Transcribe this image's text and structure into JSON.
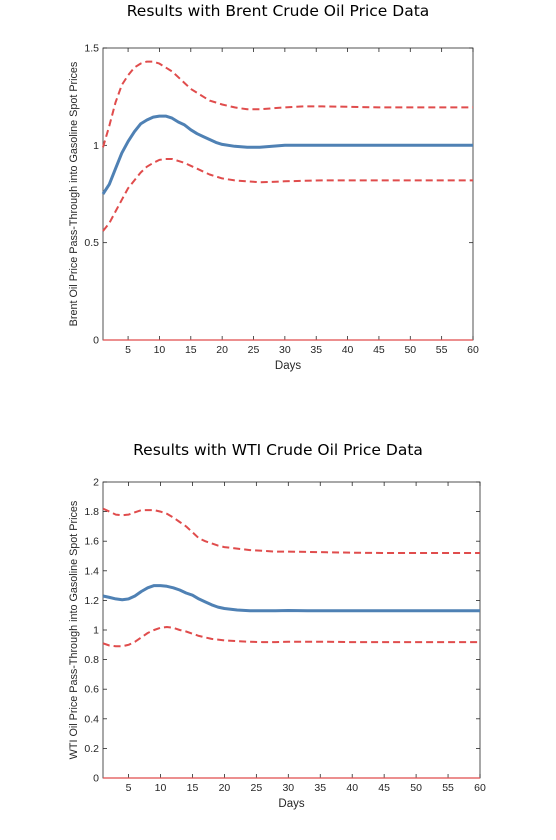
{
  "chart_data": [
    {
      "type": "line",
      "title": "Results with Brent Crude Oil Price Data",
      "xlabel": "Days",
      "ylabel": "Brent Oil Price Pass-Through into Gasoline Spot Prices",
      "xlim": [
        1,
        60
      ],
      "ylim": [
        0,
        1.5
      ],
      "x_ticks": [
        5,
        10,
        15,
        20,
        25,
        30,
        35,
        40,
        45,
        50,
        55,
        60
      ],
      "y_ticks": [
        0,
        0.5,
        1,
        1.5
      ],
      "y_tick_labels": [
        "0",
        "0.5",
        "1",
        "1.5"
      ],
      "grid": false,
      "colors": {
        "estimate": "#4f81b4",
        "bands": "#e04c4c"
      },
      "series": [
        {
          "role": "estimate",
          "style": "solid",
          "x": [
            1,
            2,
            3,
            4,
            5,
            6,
            7,
            8,
            9,
            10,
            11,
            12,
            13,
            14,
            15,
            16,
            17,
            18,
            19,
            20,
            22,
            24,
            26,
            28,
            30,
            33,
            36,
            40,
            45,
            50,
            55,
            60
          ],
          "y": [
            0.75,
            0.8,
            0.88,
            0.96,
            1.02,
            1.07,
            1.11,
            1.13,
            1.145,
            1.15,
            1.15,
            1.14,
            1.12,
            1.105,
            1.08,
            1.06,
            1.045,
            1.03,
            1.015,
            1.005,
            0.995,
            0.99,
            0.99,
            0.995,
            1.0,
            1.0,
            1.0,
            1.0,
            1.0,
            1.0,
            1.0,
            1.0
          ]
        },
        {
          "role": "upper-band",
          "style": "dashed",
          "x": [
            1,
            2,
            3,
            4,
            5,
            6,
            7,
            8,
            9,
            10,
            11,
            12,
            13,
            14,
            15,
            16,
            17,
            18,
            19,
            20,
            22,
            24,
            26,
            28,
            30,
            33,
            36,
            40,
            45,
            50,
            55,
            60
          ],
          "y": [
            0.99,
            1.1,
            1.22,
            1.31,
            1.36,
            1.4,
            1.42,
            1.43,
            1.43,
            1.42,
            1.4,
            1.38,
            1.35,
            1.32,
            1.29,
            1.27,
            1.25,
            1.23,
            1.22,
            1.21,
            1.195,
            1.185,
            1.185,
            1.19,
            1.195,
            1.2,
            1.2,
            1.198,
            1.195,
            1.195,
            1.195,
            1.195
          ]
        },
        {
          "role": "lower-band",
          "style": "dashed",
          "x": [
            1,
            2,
            3,
            4,
            5,
            6,
            7,
            8,
            9,
            10,
            11,
            12,
            13,
            14,
            15,
            16,
            17,
            18,
            19,
            20,
            22,
            24,
            26,
            28,
            30,
            33,
            36,
            40,
            45,
            50,
            55,
            60
          ],
          "y": [
            0.56,
            0.6,
            0.66,
            0.72,
            0.78,
            0.82,
            0.86,
            0.89,
            0.91,
            0.925,
            0.93,
            0.93,
            0.92,
            0.91,
            0.895,
            0.88,
            0.865,
            0.85,
            0.84,
            0.83,
            0.82,
            0.815,
            0.81,
            0.812,
            0.815,
            0.818,
            0.82,
            0.82,
            0.82,
            0.82,
            0.82,
            0.82
          ]
        }
      ]
    },
    {
      "type": "line",
      "title": "Results with WTI Crude Oil Price Data",
      "xlabel": "Days",
      "ylabel": "WTI Oil Price Pass-Through into Gasoline Spot Prices",
      "xlim": [
        1,
        60
      ],
      "ylim": [
        0,
        2
      ],
      "x_ticks": [
        5,
        10,
        15,
        20,
        25,
        30,
        35,
        40,
        45,
        50,
        55,
        60
      ],
      "y_ticks": [
        0,
        0.2,
        0.4,
        0.6,
        0.8,
        1,
        1.2,
        1.4,
        1.6,
        1.8,
        2
      ],
      "y_tick_labels": [
        "0",
        "0.2",
        "0.4",
        "0.6",
        "0.8",
        "1",
        "1.2",
        "1.4",
        "1.6",
        "1.8",
        "2"
      ],
      "grid": false,
      "colors": {
        "estimate": "#4f81b4",
        "bands": "#e04c4c"
      },
      "series": [
        {
          "role": "estimate",
          "style": "solid",
          "x": [
            1,
            2,
            3,
            4,
            5,
            6,
            7,
            8,
            9,
            10,
            11,
            12,
            13,
            14,
            15,
            16,
            17,
            18,
            19,
            20,
            22,
            24,
            26,
            28,
            30,
            33,
            36,
            40,
            45,
            50,
            55,
            60
          ],
          "y": [
            1.23,
            1.22,
            1.21,
            1.205,
            1.21,
            1.23,
            1.26,
            1.285,
            1.3,
            1.3,
            1.295,
            1.285,
            1.27,
            1.25,
            1.235,
            1.21,
            1.19,
            1.17,
            1.155,
            1.145,
            1.135,
            1.13,
            1.13,
            1.13,
            1.132,
            1.13,
            1.13,
            1.13,
            1.13,
            1.13,
            1.13,
            1.13
          ]
        },
        {
          "role": "upper-band",
          "style": "dashed",
          "x": [
            1,
            2,
            3,
            4,
            5,
            6,
            7,
            8,
            9,
            10,
            11,
            12,
            13,
            14,
            15,
            16,
            17,
            18,
            19,
            20,
            22,
            24,
            26,
            28,
            30,
            33,
            36,
            40,
            45,
            50,
            55,
            60
          ],
          "y": [
            1.82,
            1.8,
            1.78,
            1.775,
            1.78,
            1.795,
            1.81,
            1.81,
            1.81,
            1.8,
            1.785,
            1.76,
            1.73,
            1.7,
            1.66,
            1.62,
            1.6,
            1.585,
            1.57,
            1.56,
            1.55,
            1.54,
            1.535,
            1.53,
            1.53,
            1.528,
            1.525,
            1.522,
            1.52,
            1.52,
            1.52,
            1.52
          ]
        },
        {
          "role": "lower-band",
          "style": "dashed",
          "x": [
            1,
            2,
            3,
            4,
            5,
            6,
            7,
            8,
            9,
            10,
            11,
            12,
            13,
            14,
            15,
            16,
            17,
            18,
            19,
            20,
            22,
            24,
            26,
            28,
            30,
            33,
            36,
            40,
            45,
            50,
            55,
            60
          ],
          "y": [
            0.91,
            0.895,
            0.89,
            0.89,
            0.9,
            0.92,
            0.95,
            0.98,
            1.0,
            1.015,
            1.02,
            1.015,
            1.0,
            0.99,
            0.975,
            0.96,
            0.95,
            0.94,
            0.935,
            0.93,
            0.925,
            0.92,
            0.918,
            0.918,
            0.92,
            0.92,
            0.92,
            0.918,
            0.918,
            0.918,
            0.918,
            0.918
          ]
        }
      ]
    }
  ]
}
